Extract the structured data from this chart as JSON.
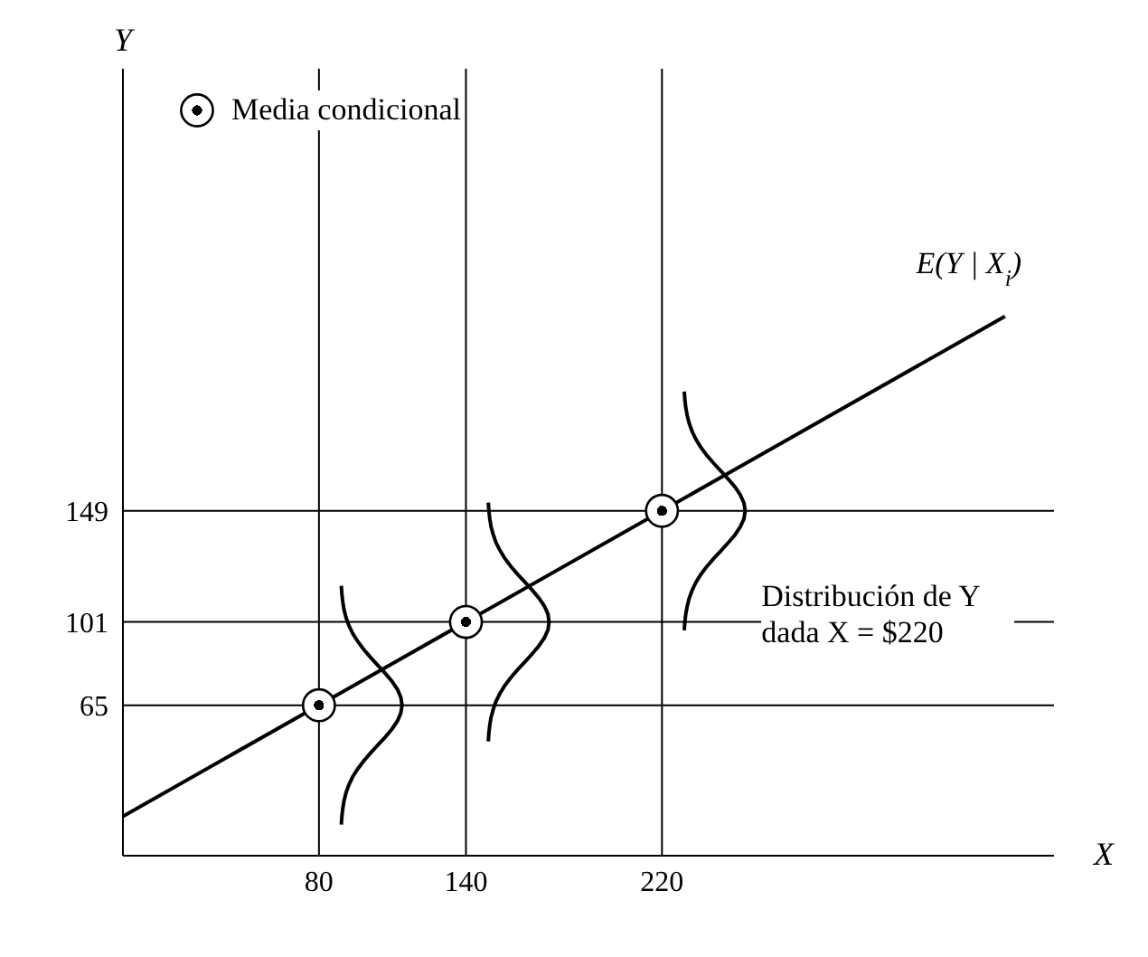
{
  "chart_data": {
    "type": "line",
    "xlabel": "X",
    "ylabel": "Y",
    "series": [
      {
        "name": "E(Y | X$_{i}$)",
        "color": "#000000",
        "x": [
          0,
          360
        ],
        "values": [
          17,
          233
        ],
        "marker": "none"
      },
      {
        "name": "Media condicional",
        "type": "scatter",
        "color": "#000000",
        "x": [
          80,
          140,
          220
        ],
        "values": [
          65,
          101,
          149
        ],
        "marker": "circle"
      }
    ],
    "xlim": [
      0,
      380
    ],
    "ylim": [
      0,
      340
    ],
    "xticks": [
      80,
      140,
      220
    ],
    "yticks": [
      65,
      101,
      149
    ],
    "ref_lines": [
      {
        "axis": "x",
        "value": 80
      },
      {
        "axis": "x",
        "value": 140
      },
      {
        "axis": "x",
        "value": 220
      },
      {
        "axis": "y",
        "value": 65
      },
      {
        "axis": "y",
        "value": 101
      },
      {
        "axis": "y",
        "value": 149
      }
    ],
    "annotations": [
      "Distribución de Y dada X = $220"
    ],
    "legend": "top left",
    "grid": false
  }
}
